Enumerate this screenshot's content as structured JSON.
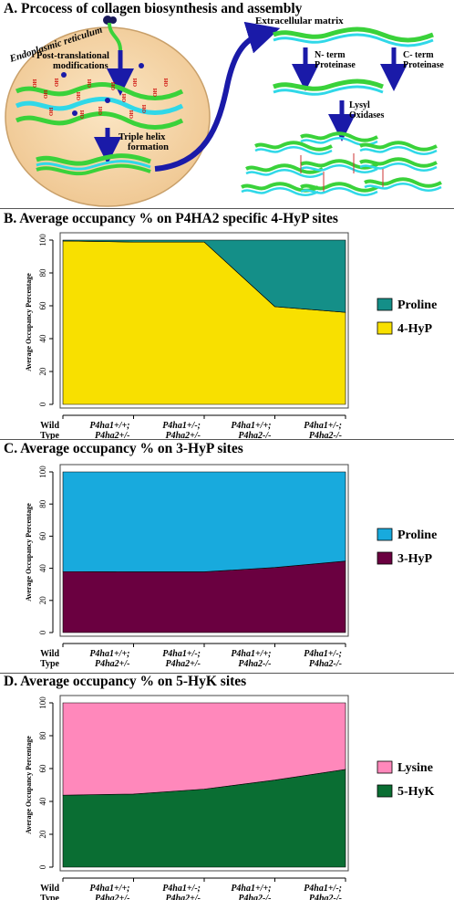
{
  "panel_a": {
    "title": "A. Prcocess of collagen biosynthesis and assembly",
    "er_label": "Endoplasmic reticulum",
    "ptm_label_1": "Post-translational",
    "ptm_label_2": "modifications",
    "triple_helix_1": "Triple helix",
    "triple_helix_2": "formation",
    "ecm_label": "Extracellular matrix",
    "nterm_1": "N- term",
    "nterm_2": "Proteinase",
    "cterm_1": "C- term",
    "cterm_2": "Proteinase",
    "lox_1": "Lysyl",
    "lox_2": "Oxidases",
    "oh_label": "OH",
    "colors": {
      "er": "#f5d6a8",
      "strand_green": "#3ad23a",
      "strand_cyan": "#30d8e8",
      "arrow_blue": "#1a1aa8",
      "oh_red": "#cc0000"
    }
  },
  "chart_data": [
    {
      "type": "area",
      "title": "B. Average occupancy % on P4HA2 specific 4-HyP sites",
      "ylabel": "Average Occupancy Percentage",
      "categories": [
        [
          "Wild",
          "Type"
        ],
        [
          "P4ha1+/+;",
          "P4ha2+/-"
        ],
        [
          "P4ha1+/-;",
          "P4ha2+/-"
        ],
        [
          "P4ha1+/+;",
          "P4ha2-/-"
        ],
        [
          "P4ha1+/-;",
          "P4ha2-/-"
        ]
      ],
      "yticks": [
        "0",
        "20",
        "40",
        "60",
        "80",
        "100"
      ],
      "ylim": [
        0,
        100
      ],
      "stacked": true,
      "series": [
        {
          "name": "4-HyP",
          "color": "#f8e000",
          "values": [
            99.5,
            98.8,
            98.8,
            59.5,
            56
          ]
        },
        {
          "name": "Proline",
          "color": "#148f88",
          "values": [
            0.5,
            1.2,
            1.2,
            40.5,
            44
          ]
        }
      ],
      "legend_position": "right"
    },
    {
      "type": "area",
      "title": "C. Average occupancy % on 3-HyP sites",
      "ylabel": "Average Occupancy Percentage",
      "categories": [
        [
          "Wild",
          "Type"
        ],
        [
          "P4ha1+/+;",
          "P4ha2+/-"
        ],
        [
          "P4ha1+/-;",
          "P4ha2+/-"
        ],
        [
          "P4ha1+/+;",
          "P4ha2-/-"
        ],
        [
          "P4ha1+/-;",
          "P4ha2-/-"
        ]
      ],
      "yticks": [
        "0",
        "20",
        "40",
        "60",
        "80",
        "100"
      ],
      "ylim": [
        0,
        100
      ],
      "stacked": true,
      "series": [
        {
          "name": "3-HyP",
          "color": "#6a0040",
          "values": [
            38,
            37.8,
            37.8,
            40.5,
            44.5
          ]
        },
        {
          "name": "Proline",
          "color": "#18aadd",
          "values": [
            62,
            62.2,
            62.2,
            59.5,
            55.5
          ]
        }
      ],
      "legend_position": "right"
    },
    {
      "type": "area",
      "title": "D. Average occupancy % on 5-HyK sites",
      "ylabel": "Average Occupancy Percentage",
      "categories": [
        [
          "Wild",
          "Type"
        ],
        [
          "P4ha1+/+;",
          "P4ha2+/-"
        ],
        [
          "P4ha1+/-;",
          "P4ha2+/-"
        ],
        [
          "P4ha1+/+;",
          "P4ha2-/-"
        ],
        [
          "P4ha1+/-;",
          "P4ha2-/-"
        ]
      ],
      "yticks": [
        "0",
        "20",
        "40",
        "60",
        "80",
        "100"
      ],
      "ylim": [
        0,
        100
      ],
      "stacked": true,
      "series": [
        {
          "name": "5-HyK",
          "color": "#0a6e33",
          "values": [
            43.8,
            44.5,
            47.5,
            53,
            59.5
          ]
        },
        {
          "name": "Lysine",
          "color": "#ff88bb",
          "values": [
            56.2,
            55.5,
            52.5,
            47,
            40.5
          ]
        }
      ],
      "legend_position": "right"
    }
  ]
}
